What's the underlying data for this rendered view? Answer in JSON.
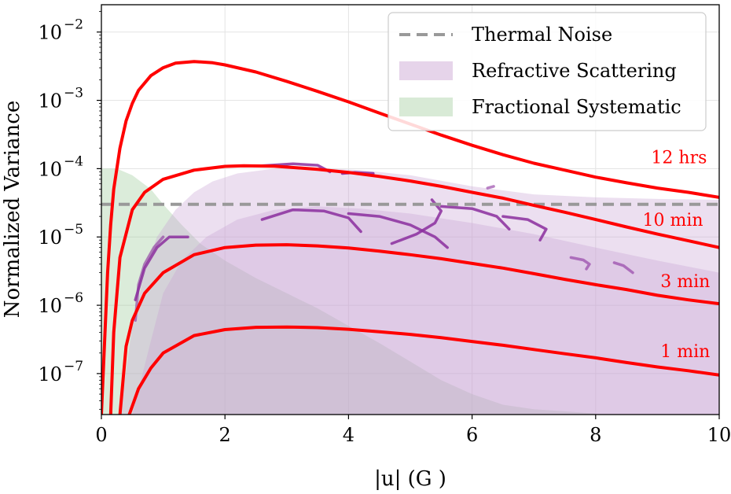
{
  "chart_data": {
    "type": "line",
    "title": "",
    "xlabel": "|u| (G   )",
    "ylabel": "Normalized Variance",
    "xlim": [
      0,
      10
    ],
    "ylim_log10": [
      -7.6,
      -1.6
    ],
    "yscale": "log",
    "grid": true,
    "legend_placement": "top-right",
    "x_ticks": [
      {
        "value": 0,
        "label": "0"
      },
      {
        "value": 2,
        "label": "2"
      },
      {
        "value": 4,
        "label": "4"
      },
      {
        "value": 6,
        "label": "6"
      },
      {
        "value": 8,
        "label": "8"
      },
      {
        "value": 10,
        "label": "10"
      }
    ],
    "y_ticks": [
      {
        "exp": -2,
        "base": "10",
        "sup": "−2"
      },
      {
        "exp": -3,
        "base": "10",
        "sup": "−3"
      },
      {
        "exp": -4,
        "base": "10",
        "sup": "−4"
      },
      {
        "exp": -5,
        "base": "10",
        "sup": "−5"
      },
      {
        "exp": -6,
        "base": "10",
        "sup": "−6"
      },
      {
        "exp": -7,
        "base": "10",
        "sup": "−7"
      }
    ],
    "legend": [
      {
        "label": "Thermal Noise",
        "kind": "dashed",
        "color": "#999999"
      },
      {
        "label": "Refractive Scattering",
        "kind": "patch",
        "color": "#e6d4ea"
      },
      {
        "label": "Fractional Systematic",
        "kind": "patch",
        "color": "#d8ead6"
      }
    ],
    "thermal_noise": {
      "value": 3e-05,
      "color": "#999999"
    },
    "fractional_systematic": {
      "color": "#98c896",
      "opacity": 0.35,
      "points": [
        [
          0.0,
          0.0001
        ],
        [
          0.25,
          0.0001
        ],
        [
          0.5,
          8e-05
        ],
        [
          0.8,
          5e-05
        ],
        [
          1.0,
          3e-05
        ],
        [
          1.3,
          1.5e-05
        ],
        [
          1.6,
          8e-06
        ],
        [
          2.0,
          4.5e-06
        ],
        [
          2.5,
          2.5e-06
        ],
        [
          3.0,
          1.5e-06
        ],
        [
          3.5,
          9e-07
        ],
        [
          4.0,
          5e-07
        ],
        [
          4.5,
          2.8e-07
        ],
        [
          5.0,
          1.5e-07
        ],
        [
          5.5,
          8e-08
        ],
        [
          6.0,
          5e-08
        ],
        [
          6.5,
          3.5e-08
        ],
        [
          7.0,
          3e-08
        ],
        [
          7.5,
          2.8e-08
        ],
        [
          8.0,
          2.6e-08
        ]
      ]
    },
    "refractive_scattering": {
      "color": "#c9a3d3",
      "opacity": 0.35,
      "bands": [
        {
          "points": [
            [
              0.3,
              2.5e-08
            ],
            [
              0.5,
              5e-07
            ],
            [
              0.7,
              3e-06
            ],
            [
              0.9,
              1e-05
            ],
            [
              1.2,
              2.5e-05
            ],
            [
              1.5,
              4.5e-05
            ],
            [
              1.8,
              6.5e-05
            ],
            [
              2.2,
              8.5e-05
            ],
            [
              2.8,
              0.0001
            ],
            [
              3.5,
              0.000102
            ],
            [
              4.2,
              9.5e-05
            ],
            [
              5.0,
              8e-05
            ],
            [
              6.0,
              5.5e-05
            ],
            [
              7.0,
              4.2e-05
            ],
            [
              8.0,
              3.8e-05
            ],
            [
              9.0,
              3.6e-05
            ],
            [
              10.0,
              3.5e-05
            ]
          ]
        },
        {
          "points": [
            [
              0.5,
              2.5e-08
            ],
            [
              0.8,
              3e-07
            ],
            [
              1.0,
              1.5e-06
            ],
            [
              1.3,
              4.5e-06
            ],
            [
              1.7,
              1e-05
            ],
            [
              2.2,
              1.8e-05
            ],
            [
              2.8,
              2.5e-05
            ],
            [
              3.5,
              2.8e-05
            ],
            [
              4.2,
              2.6e-05
            ],
            [
              5.0,
              2.2e-05
            ],
            [
              6.0,
              1.6e-05
            ],
            [
              7.0,
              1.1e-05
            ],
            [
              8.0,
              7e-06
            ],
            [
              9.0,
              4.5e-06
            ],
            [
              10.0,
              3e-06
            ]
          ]
        }
      ]
    },
    "series": [
      {
        "name": "12 hrs",
        "color": "#ff0000",
        "label_at": [
          9.35,
          0.00012
        ],
        "points": [
          [
            0.0,
            2.5e-08
          ],
          [
            0.1,
            3e-06
          ],
          [
            0.15,
            1.5e-05
          ],
          [
            0.2,
            5e-05
          ],
          [
            0.3,
            0.0002
          ],
          [
            0.4,
            0.0005
          ],
          [
            0.5,
            0.0009
          ],
          [
            0.6,
            0.0014
          ],
          [
            0.8,
            0.0023
          ],
          [
            1.0,
            0.003
          ],
          [
            1.2,
            0.0035
          ],
          [
            1.5,
            0.0037
          ],
          [
            1.8,
            0.00355
          ],
          [
            2.0,
            0.0033
          ],
          [
            2.5,
            0.0026
          ],
          [
            3.0,
            0.0019
          ],
          [
            3.5,
            0.00135
          ],
          [
            4.0,
            0.00095
          ],
          [
            4.5,
            0.00065
          ],
          [
            5.0,
            0.00045
          ],
          [
            5.5,
            0.00031
          ],
          [
            6.0,
            0.00022
          ],
          [
            6.5,
            0.00016
          ],
          [
            7.0,
            0.00012
          ],
          [
            7.5,
            9.5e-05
          ],
          [
            8.0,
            7.5e-05
          ],
          [
            8.5,
            6.2e-05
          ],
          [
            9.0,
            5.2e-05
          ],
          [
            9.5,
            4.5e-05
          ],
          [
            10.0,
            3.8e-05
          ]
        ]
      },
      {
        "name": "10 min",
        "color": "#ff0000",
        "label_at": [
          9.25,
          1.45e-05
        ],
        "points": [
          [
            0.15,
            2.5e-08
          ],
          [
            0.2,
            4e-07
          ],
          [
            0.3,
            5e-06
          ],
          [
            0.5,
            2.5e-05
          ],
          [
            0.7,
            4.5e-05
          ],
          [
            1.0,
            7e-05
          ],
          [
            1.5,
            9.5e-05
          ],
          [
            2.0,
            0.000108
          ],
          [
            2.3,
            0.00011
          ],
          [
            2.8,
            0.000109
          ],
          [
            3.5,
            9.8e-05
          ],
          [
            4.0,
            8.8e-05
          ],
          [
            4.5,
            7.7e-05
          ],
          [
            5.0,
            6.6e-05
          ],
          [
            5.5,
            5.5e-05
          ],
          [
            6.0,
            4.5e-05
          ],
          [
            6.5,
            3.7e-05
          ],
          [
            7.0,
            2.9e-05
          ],
          [
            7.5,
            2.3e-05
          ],
          [
            8.0,
            1.8e-05
          ],
          [
            8.5,
            1.4e-05
          ],
          [
            9.0,
            1.1e-05
          ],
          [
            9.5,
            8.8e-06
          ],
          [
            10.0,
            7e-06
          ]
        ]
      },
      {
        "name": "3 min",
        "color": "#ff0000",
        "label_at": [
          9.45,
          1.85e-06
        ],
        "points": [
          [
            0.3,
            2.5e-08
          ],
          [
            0.4,
            2.5e-07
          ],
          [
            0.5,
            6e-07
          ],
          [
            0.7,
            1.5e-06
          ],
          [
            1.0,
            3e-06
          ],
          [
            1.5,
            5.5e-06
          ],
          [
            2.0,
            7e-06
          ],
          [
            2.5,
            7.6e-06
          ],
          [
            3.0,
            7.7e-06
          ],
          [
            3.5,
            7.4e-06
          ],
          [
            4.0,
            6.9e-06
          ],
          [
            4.5,
            6.2e-06
          ],
          [
            5.0,
            5.5e-06
          ],
          [
            5.5,
            4.8e-06
          ],
          [
            6.0,
            4.1e-06
          ],
          [
            6.5,
            3.5e-06
          ],
          [
            7.0,
            2.9e-06
          ],
          [
            7.5,
            2.4e-06
          ],
          [
            8.0,
            2e-06
          ],
          [
            8.5,
            1.7e-06
          ],
          [
            9.0,
            1.4e-06
          ],
          [
            9.5,
            1.2e-06
          ],
          [
            10.0,
            1.05e-06
          ]
        ]
      },
      {
        "name": "1 min",
        "color": "#ff0000",
        "label_at": [
          9.45,
          1.75e-07
        ],
        "points": [
          [
            0.45,
            2.5e-08
          ],
          [
            0.6,
            6e-08
          ],
          [
            0.8,
            1.2e-07
          ],
          [
            1.0,
            2e-07
          ],
          [
            1.5,
            3.6e-07
          ],
          [
            2.0,
            4.4e-07
          ],
          [
            2.5,
            4.75e-07
          ],
          [
            3.0,
            4.8e-07
          ],
          [
            3.5,
            4.7e-07
          ],
          [
            4.0,
            4.45e-07
          ],
          [
            4.5,
            4.1e-07
          ],
          [
            5.0,
            3.75e-07
          ],
          [
            5.5,
            3.35e-07
          ],
          [
            6.0,
            2.95e-07
          ],
          [
            6.5,
            2.6e-07
          ],
          [
            7.0,
            2.25e-07
          ],
          [
            7.5,
            1.95e-07
          ],
          [
            8.0,
            1.7e-07
          ],
          [
            8.5,
            1.45e-07
          ],
          [
            9.0,
            1.25e-07
          ],
          [
            9.5,
            1.1e-07
          ],
          [
            10.0,
            9.5e-08
          ]
        ]
      }
    ],
    "tracks": {
      "color": "#8b2e9e",
      "segments": [
        {
          "opacity": 0.85,
          "points": [
            [
              0.55,
              1.2e-06
            ],
            [
              0.7,
              3.5e-06
            ],
            [
              0.9,
              7e-06
            ],
            [
              1.1,
              1e-05
            ],
            [
              1.4,
              1e-05
            ]
          ]
        },
        {
          "opacity": 0.6,
          "points": [
            [
              0.55,
              6e-07
            ],
            [
              0.6,
              2e-06
            ],
            [
              0.7,
              4e-06
            ],
            [
              0.85,
              7e-06
            ],
            [
              1.0,
              1e-05
            ]
          ]
        },
        {
          "opacity": 0.85,
          "points": [
            [
              2.6,
              0.00011
            ],
            [
              3.1,
              0.000118
            ],
            [
              3.5,
              0.000112
            ],
            [
              3.7,
              9e-05
            ]
          ]
        },
        {
          "opacity": 0.9,
          "points": [
            [
              3.9,
              8.5e-05
            ],
            [
              4.1,
              8.8e-05
            ],
            [
              4.4,
              8.5e-05
            ]
          ]
        },
        {
          "opacity": 0.85,
          "points": [
            [
              2.6,
              1.8e-05
            ],
            [
              3.1,
              2.5e-05
            ],
            [
              3.6,
              2.4e-05
            ],
            [
              4.0,
              1.9e-05
            ],
            [
              4.2,
              1.2e-05
            ]
          ]
        },
        {
          "opacity": 0.85,
          "points": [
            [
              4.0,
              2.2e-05
            ],
            [
              4.5,
              2e-05
            ],
            [
              5.0,
              1.5e-05
            ],
            [
              5.4,
              1e-05
            ],
            [
              5.6,
              7e-06
            ]
          ]
        },
        {
          "opacity": 0.85,
          "points": [
            [
              4.7,
              8e-06
            ],
            [
              5.1,
              1.1e-05
            ],
            [
              5.4,
              1.6e-05
            ],
            [
              5.5,
              2.4e-05
            ],
            [
              5.35,
              3.5e-05
            ]
          ]
        },
        {
          "opacity": 0.85,
          "points": [
            [
              5.5,
              2.8e-05
            ],
            [
              6.0,
              2.6e-05
            ],
            [
              6.4,
              2e-05
            ],
            [
              6.6,
              1.3e-05
            ]
          ]
        },
        {
          "opacity": 0.85,
          "points": [
            [
              6.5,
              2e-05
            ],
            [
              6.9,
              1.8e-05
            ],
            [
              7.2,
              1.3e-05
            ],
            [
              7.1,
              9e-06
            ]
          ]
        },
        {
          "opacity": 0.6,
          "points": [
            [
              6.25,
              5.2e-05
            ],
            [
              6.35,
              5.5e-05
            ]
          ]
        },
        {
          "opacity": 0.6,
          "points": [
            [
              7.6,
              5e-06
            ],
            [
              7.8,
              4.6e-06
            ],
            [
              7.9,
              4e-06
            ],
            [
              7.85,
              3.4e-06
            ]
          ]
        },
        {
          "opacity": 0.6,
          "points": [
            [
              8.3,
              4.2e-06
            ],
            [
              8.45,
              3.8e-06
            ],
            [
              8.6,
              3e-06
            ]
          ]
        }
      ]
    }
  }
}
